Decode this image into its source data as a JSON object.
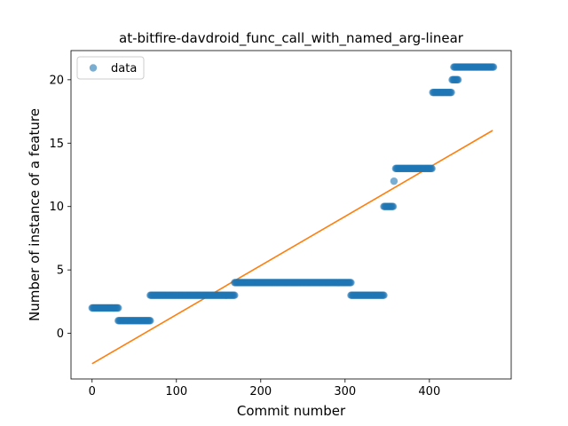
{
  "chart_data": {
    "type": "scatter",
    "title": "at-bitfire-davdroid_func_call_with_named_arg-linear",
    "xlabel": "Commit number",
    "ylabel": "Number of instance of a feature",
    "xlim": [
      -25,
      497
    ],
    "ylim": [
      -3.6,
      22.3
    ],
    "xticks": [
      0,
      100,
      200,
      300,
      400
    ],
    "yticks": [
      0,
      5,
      10,
      15,
      20
    ],
    "grid": false,
    "legend_position": "upper-left",
    "colors": {
      "data": "#1f77b4",
      "fit": "#ff7f0e"
    },
    "series": [
      {
        "name": "data",
        "kind": "points",
        "segments": [
          {
            "x_start": 0,
            "x_end": 31,
            "y": 2
          },
          {
            "x_start": 31,
            "x_end": 69,
            "y": 1
          },
          {
            "x_start": 69,
            "x_end": 169,
            "y": 3
          },
          {
            "x_start": 169,
            "x_end": 307,
            "y": 4
          },
          {
            "x_start": 307,
            "x_end": 346,
            "y": 3
          },
          {
            "x_start": 346,
            "x_end": 357,
            "y": 10
          },
          {
            "x_start": 358,
            "x_end": 358,
            "y": 12
          },
          {
            "x_start": 360,
            "x_end": 403,
            "y": 13
          },
          {
            "x_start": 404,
            "x_end": 426,
            "y": 19
          },
          {
            "x_start": 427,
            "x_end": 434,
            "y": 20
          },
          {
            "x_start": 429,
            "x_end": 476,
            "y": 21
          }
        ]
      },
      {
        "kind": "line",
        "points": [
          [
            0,
            -2.4
          ],
          [
            475,
            16.0
          ]
        ]
      }
    ]
  }
}
